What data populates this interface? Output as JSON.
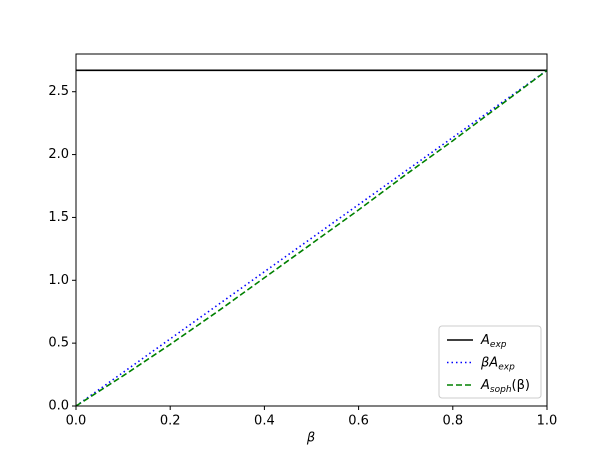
{
  "chart_data": {
    "type": "line",
    "x_label": "β",
    "x": [
      0,
      0.1,
      0.2,
      0.3,
      0.4,
      0.5,
      0.6,
      0.7,
      0.8,
      0.9,
      1.0
    ],
    "series": [
      {
        "name": "A",
        "subscript": "exp",
        "suffix": "",
        "color": "#000000",
        "style": "solid",
        "values": [
          2.67,
          2.67,
          2.67,
          2.67,
          2.67,
          2.67,
          2.67,
          2.67,
          2.67,
          2.67,
          2.67
        ]
      },
      {
        "name": "βA",
        "subscript": "exp",
        "suffix": "",
        "color": "#0000ff",
        "style": "dotted",
        "values": [
          0,
          0.267,
          0.534,
          0.801,
          1.068,
          1.335,
          1.602,
          1.869,
          2.136,
          2.403,
          2.67
        ]
      },
      {
        "name": "A",
        "subscript": "soph",
        "suffix": "(β)",
        "color": "#008000",
        "style": "dashed",
        "values": [
          0,
          0.24,
          0.49,
          0.75,
          1.02,
          1.29,
          1.56,
          1.84,
          2.11,
          2.39,
          2.67
        ]
      }
    ],
    "xlim": [
      0,
      1
    ],
    "ylim": [
      0,
      2.8
    ],
    "xticks": [
      {
        "value": 0,
        "label": "0.0"
      },
      {
        "value": 0.2,
        "label": "0.2"
      },
      {
        "value": 0.4,
        "label": "0.4"
      },
      {
        "value": 0.6,
        "label": "0.6"
      },
      {
        "value": 0.8,
        "label": "0.8"
      },
      {
        "value": 1,
        "label": "1.0"
      }
    ],
    "yticks": [
      {
        "value": 0,
        "label": "0.0"
      },
      {
        "value": 0.5,
        "label": "0.5"
      },
      {
        "value": 1,
        "label": "1.0"
      },
      {
        "value": 1.5,
        "label": "1.5"
      },
      {
        "value": 2,
        "label": "2.0"
      },
      {
        "value": 2.5,
        "label": "2.5"
      }
    ],
    "legend": "lower right",
    "grid": false
  }
}
